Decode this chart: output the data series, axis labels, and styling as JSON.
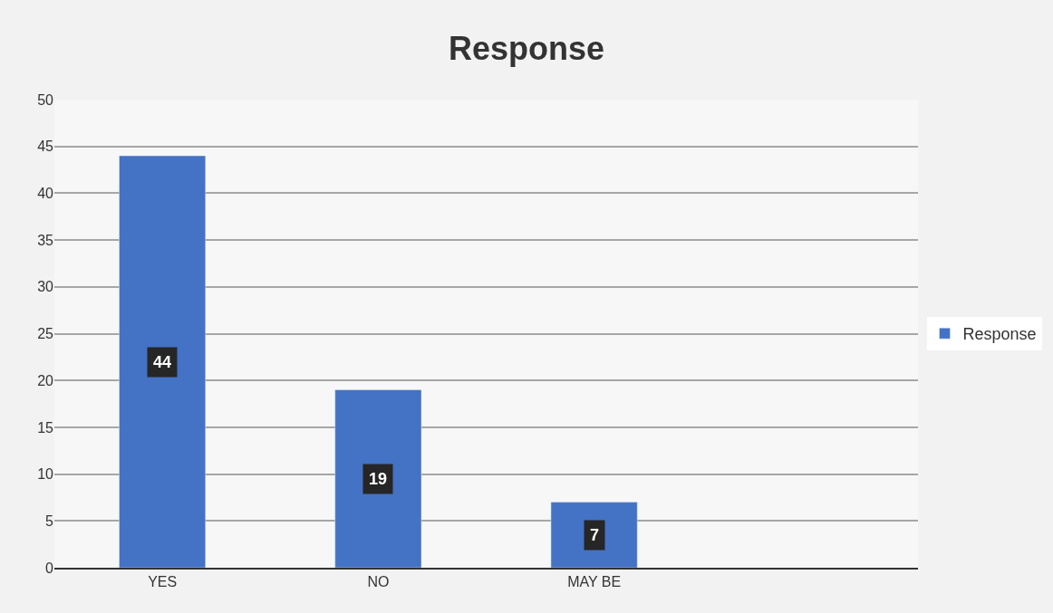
{
  "chart_data": {
    "type": "bar",
    "title": "Response",
    "categories": [
      "YES",
      "NO",
      "MAY BE",
      null
    ],
    "series": [
      {
        "name": "Response",
        "color": "#4472c4",
        "values": [
          44,
          19,
          7,
          null
        ]
      }
    ],
    "ylim": [
      0,
      50
    ],
    "yticks": [
      0,
      5,
      10,
      15,
      20,
      25,
      30,
      35,
      40,
      45,
      50
    ],
    "grid": "y",
    "legend": "right",
    "data_labels": true
  }
}
